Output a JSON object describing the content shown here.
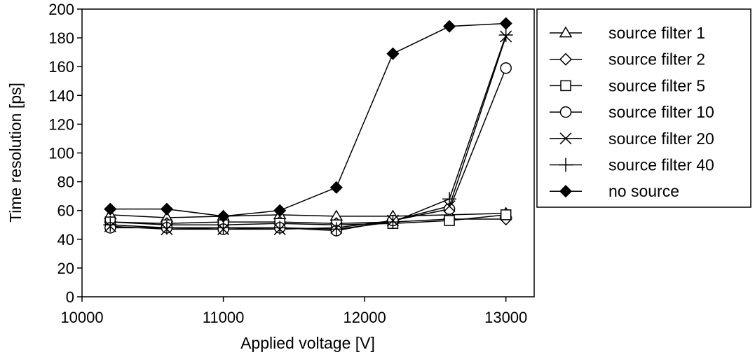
{
  "chart_data": {
    "type": "line",
    "xlabel": "Applied voltage [V]",
    "ylabel": "Time resolution [ps]",
    "xlim": [
      10000,
      13200
    ],
    "ylim": [
      0,
      200
    ],
    "x_ticks": [
      "10000",
      "11000",
      "12000",
      "13000"
    ],
    "y_ticks": [
      "0",
      "20",
      "40",
      "60",
      "80",
      "100",
      "120",
      "140",
      "160",
      "180",
      "200"
    ],
    "legend_position": "right",
    "grid": false,
    "x": [
      10200,
      10600,
      11000,
      11400,
      11800,
      12200,
      12600,
      13000
    ],
    "series": [
      {
        "name": "source filter 1",
        "marker": "triangle",
        "values": [
          57,
          55,
          56,
          57,
          56,
          56,
          57,
          58
        ]
      },
      {
        "name": "source filter 2",
        "marker": "diamond",
        "values": [
          52,
          51,
          52,
          52,
          51,
          52,
          54,
          54
        ]
      },
      {
        "name": "source filter 5",
        "marker": "square",
        "values": [
          52,
          50,
          50,
          51,
          50,
          51,
          53,
          57
        ]
      },
      {
        "name": "source filter 10",
        "marker": "circle",
        "values": [
          48,
          48,
          47,
          48,
          46,
          53,
          61,
          159
        ]
      },
      {
        "name": "source filter 20",
        "marker": "x",
        "values": [
          49,
          47,
          47,
          47,
          48,
          53,
          63,
          181
        ]
      },
      {
        "name": "source filter 40",
        "marker": "plus",
        "values": [
          50,
          48,
          48,
          48,
          47,
          52,
          68,
          182
        ]
      },
      {
        "name": "no source",
        "marker": "filled-diamond",
        "values": [
          61,
          61,
          56,
          60,
          76,
          169,
          188,
          190
        ]
      }
    ]
  }
}
